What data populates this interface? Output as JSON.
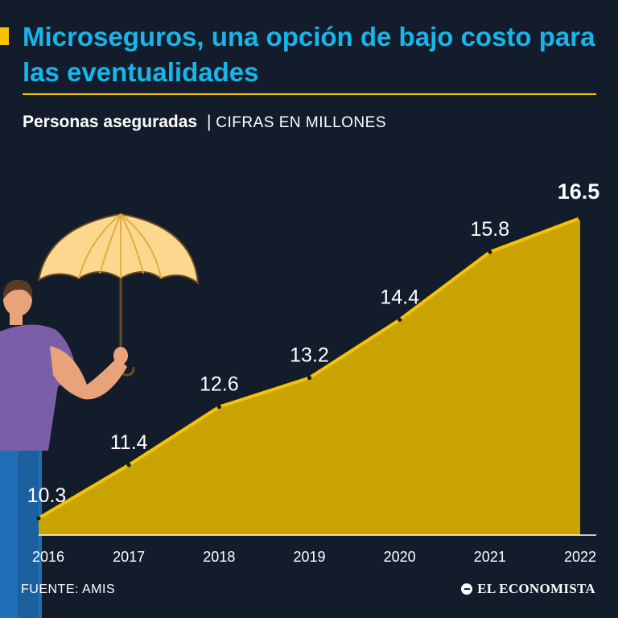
{
  "header": {
    "title": "Microseguros, una opción de bajo costo para las eventualidades",
    "subtitle_bold": "Personas aseguradas",
    "separator": "|",
    "subtitle_units": "CIFRAS EN MILLONES"
  },
  "footer": {
    "source": "FUENTE: AMIS",
    "brand": "EL ECONOMISTA"
  },
  "colors": {
    "background": "#131c2b",
    "accent": "#f5c400",
    "area_fill": "#c9a300",
    "title": "#17b6ea"
  },
  "chart_data": {
    "type": "area",
    "title": "Personas aseguradas",
    "units": "CIFRAS EN MILLONES",
    "categories": [
      "2016",
      "2017",
      "2018",
      "2019",
      "2020",
      "2021",
      "2022"
    ],
    "values": [
      10.3,
      11.4,
      12.6,
      13.2,
      14.4,
      15.8,
      16.5
    ],
    "value_labels": [
      "10.3",
      "11.4",
      "12.6",
      "13.2",
      "14.4",
      "15.8",
      "16.5"
    ],
    "highlight_index": 6,
    "xlabel": "",
    "ylabel": "",
    "ylim": [
      9.95,
      16.5
    ],
    "grid": false
  }
}
